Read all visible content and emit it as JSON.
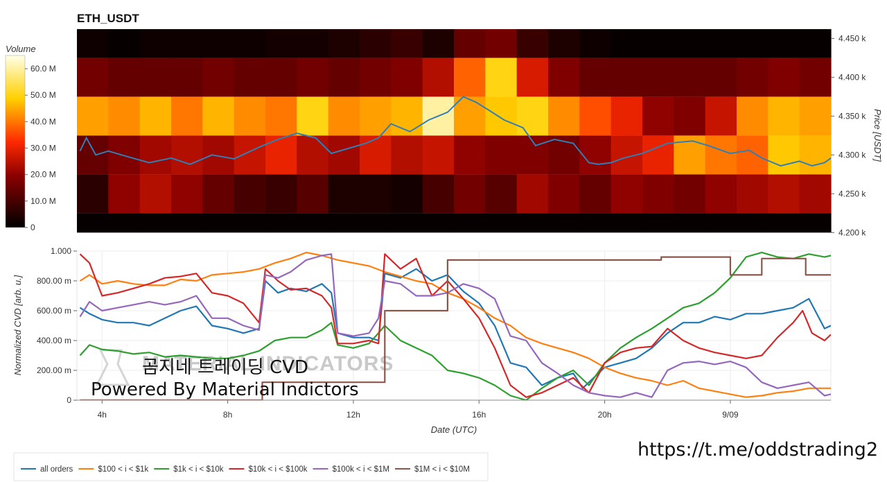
{
  "chart_data": [
    {
      "type": "heatmap",
      "title": "ETH_USDT",
      "ylabel": "Price [USDT]",
      "colorbar_label": "Volume",
      "colorbar_ticks": [
        "60.0 M",
        "50.0 M",
        "40.0 M",
        "30.0 M",
        "20.0 M",
        "10.0 M",
        "0"
      ],
      "colorbar_max": 65,
      "price_ticks": [
        "4.450 k",
        "4.400 k",
        "4.350 k",
        "4.300 k",
        "4.250 k",
        "4.200 k"
      ],
      "ylim": [
        4195,
        4462
      ],
      "bands": [
        {
          "low": 4200,
          "high": 4225,
          "vol": [
            1,
            1,
            1,
            1,
            1,
            1,
            1,
            1,
            1,
            1,
            1,
            1
          ]
        },
        {
          "low": 4225,
          "high": 4275,
          "vol": [
            6,
            20,
            24,
            20,
            14,
            10,
            8,
            12,
            4,
            4,
            3,
            10,
            16,
            12,
            22,
            18,
            14,
            20,
            18,
            16,
            20,
            22,
            24,
            22
          ]
        },
        {
          "low": 4275,
          "high": 4325,
          "vol": [
            14,
            18,
            22,
            24,
            22,
            26,
            30,
            24,
            22,
            28,
            24,
            26,
            20,
            18,
            18,
            16,
            20,
            26,
            30,
            44,
            40,
            38,
            48,
            46
          ]
        },
        {
          "low": 4325,
          "high": 4375,
          "vol": [
            44,
            42,
            46,
            40,
            46,
            42,
            40,
            50,
            42,
            44,
            46,
            60,
            44,
            48,
            50,
            42,
            36,
            30,
            20,
            18,
            26,
            42,
            46,
            44
          ]
        },
        {
          "low": 4375,
          "high": 4425,
          "vol": [
            16,
            14,
            14,
            14,
            16,
            14,
            14,
            16,
            14,
            16,
            18,
            24,
            38,
            50,
            28,
            18,
            14,
            14,
            14,
            14,
            14,
            16,
            18,
            16
          ]
        },
        {
          "low": 4425,
          "high": 4462,
          "vol": [
            2,
            1,
            2,
            2,
            2,
            2,
            3,
            3,
            4,
            6,
            8,
            4,
            14,
            16,
            8,
            4,
            2,
            1,
            1,
            1,
            1,
            1,
            1,
            1
          ]
        }
      ],
      "price_series": {
        "name": "price",
        "x": [
          3.3,
          3.5,
          3.8,
          4.2,
          4.8,
          5.5,
          6.2,
          6.8,
          7.5,
          8.2,
          9.0,
          9.6,
          10.2,
          10.8,
          11.3,
          11.8,
          12.4,
          12.8,
          13.2,
          13.8,
          14.4,
          15.0,
          15.5,
          15.9,
          16.3,
          16.8,
          17.4,
          17.8,
          18.4,
          19.0,
          19.5,
          19.8,
          20.2,
          20.6,
          21.2,
          22.0,
          22.8,
          23.3,
          24.0,
          24.6,
          25.0,
          25.6,
          26.2,
          26.6,
          27.0,
          27.2
        ],
        "y": [
          4305,
          4322,
          4300,
          4305,
          4298,
          4290,
          4296,
          4288,
          4300,
          4295,
          4310,
          4320,
          4328,
          4322,
          4302,
          4308,
          4315,
          4322,
          4340,
          4330,
          4345,
          4355,
          4375,
          4368,
          4358,
          4345,
          4335,
          4312,
          4320,
          4315,
          4290,
          4288,
          4290,
          4296,
          4302,
          4315,
          4318,
          4312,
          4302,
          4306,
          4296,
          4286,
          4292,
          4286,
          4290,
          4296
        ]
      }
    },
    {
      "type": "line",
      "xlabel": "Date (UTC)",
      "ylabel": "Normalized CVD [arb. u.]",
      "ylim": [
        0,
        1
      ],
      "y_ticks": [
        "1.000",
        "800.00 m",
        "600.00 m",
        "400.00 m",
        "200.00 m",
        "0"
      ],
      "x_ticks": [
        "4h",
        "8h",
        "12h",
        "16h",
        "20h",
        "9/09"
      ],
      "x_range": [
        3.2,
        27.2
      ],
      "x_tick_positions": [
        4,
        8,
        12,
        16,
        20,
        24
      ],
      "series": [
        {
          "name": "all orders",
          "color": "#1f77b4",
          "x": [
            3.3,
            3.6,
            4.0,
            4.5,
            5.0,
            5.5,
            6.0,
            6.5,
            7.0,
            7.5,
            8.0,
            8.5,
            9.0,
            9.2,
            9.6,
            10.0,
            10.5,
            11.0,
            11.3,
            11.5,
            12.0,
            12.5,
            12.8,
            13.0,
            13.5,
            14.0,
            14.5,
            15.0,
            15.5,
            16.0,
            16.5,
            17.0,
            17.5,
            18.0,
            18.5,
            19.0,
            19.3,
            19.5,
            20.0,
            20.5,
            21.0,
            21.5,
            22.0,
            22.5,
            23.0,
            23.5,
            24.0,
            24.5,
            25.0,
            25.5,
            26.0,
            26.5,
            27.0,
            27.2
          ],
          "y": [
            0.62,
            0.58,
            0.54,
            0.52,
            0.52,
            0.5,
            0.55,
            0.6,
            0.63,
            0.5,
            0.48,
            0.45,
            0.48,
            0.8,
            0.72,
            0.75,
            0.73,
            0.78,
            0.72,
            0.45,
            0.42,
            0.42,
            0.4,
            0.85,
            0.82,
            0.88,
            0.8,
            0.84,
            0.73,
            0.65,
            0.5,
            0.25,
            0.22,
            0.1,
            0.15,
            0.18,
            0.08,
            0.12,
            0.22,
            0.25,
            0.28,
            0.35,
            0.45,
            0.52,
            0.52,
            0.56,
            0.54,
            0.58,
            0.58,
            0.6,
            0.62,
            0.68,
            0.48,
            0.5
          ]
        },
        {
          "name": "$100 < i < $1k",
          "color": "#ff7f0e",
          "x": [
            3.3,
            3.6,
            4.0,
            4.5,
            5.0,
            5.5,
            6.0,
            6.5,
            7.0,
            7.5,
            8.0,
            8.5,
            9.0,
            9.5,
            10.0,
            10.5,
            11.0,
            11.5,
            12.0,
            12.5,
            13.0,
            13.5,
            14.0,
            14.5,
            15.0,
            15.5,
            16.0,
            16.5,
            17.0,
            17.5,
            18.0,
            18.5,
            19.0,
            19.5,
            20.0,
            20.5,
            21.0,
            21.5,
            22.0,
            22.5,
            23.0,
            23.5,
            24.0,
            24.5,
            25.0,
            25.5,
            26.0,
            26.5,
            27.0,
            27.2
          ],
          "y": [
            0.8,
            0.84,
            0.78,
            0.8,
            0.78,
            0.77,
            0.77,
            0.81,
            0.8,
            0.84,
            0.85,
            0.86,
            0.88,
            0.92,
            0.95,
            0.99,
            0.97,
            0.94,
            0.92,
            0.9,
            0.86,
            0.83,
            0.8,
            0.78,
            0.72,
            0.68,
            0.62,
            0.55,
            0.5,
            0.42,
            0.38,
            0.35,
            0.32,
            0.28,
            0.22,
            0.18,
            0.15,
            0.13,
            0.1,
            0.13,
            0.08,
            0.06,
            0.04,
            0.02,
            0.03,
            0.05,
            0.06,
            0.08,
            0.08,
            0.08
          ]
        },
        {
          "name": "$1k < i < $10k",
          "color": "#2ca02c",
          "x": [
            3.3,
            3.6,
            4.0,
            4.5,
            5.0,
            5.5,
            6.0,
            6.5,
            7.0,
            7.5,
            8.0,
            8.5,
            9.0,
            9.5,
            10.0,
            10.5,
            11.0,
            11.3,
            11.5,
            12.0,
            12.5,
            12.8,
            13.0,
            13.5,
            14.0,
            14.5,
            15.0,
            15.5,
            16.0,
            16.5,
            17.0,
            17.5,
            18.0,
            18.5,
            19.0,
            19.5,
            20.0,
            20.5,
            21.0,
            21.5,
            22.0,
            22.5,
            23.0,
            23.5,
            24.0,
            24.5,
            25.0,
            25.5,
            26.0,
            26.5,
            27.0,
            27.2
          ],
          "y": [
            0.3,
            0.37,
            0.34,
            0.33,
            0.31,
            0.32,
            0.29,
            0.3,
            0.29,
            0.28,
            0.28,
            0.3,
            0.33,
            0.4,
            0.42,
            0.42,
            0.47,
            0.52,
            0.37,
            0.35,
            0.38,
            0.45,
            0.5,
            0.4,
            0.35,
            0.3,
            0.2,
            0.18,
            0.15,
            0.1,
            0.03,
            0.0,
            0.08,
            0.15,
            0.2,
            0.1,
            0.25,
            0.35,
            0.42,
            0.48,
            0.55,
            0.62,
            0.65,
            0.72,
            0.82,
            0.96,
            0.99,
            0.96,
            0.95,
            0.98,
            0.96,
            0.97
          ]
        },
        {
          "name": "$10k < i < $100k",
          "color": "#d62728",
          "x": [
            3.3,
            3.6,
            4.0,
            4.5,
            5.0,
            5.5,
            6.0,
            6.5,
            7.0,
            7.5,
            8.0,
            8.5,
            9.0,
            9.2,
            9.6,
            10.0,
            10.5,
            11.0,
            11.3,
            11.5,
            12.0,
            12.5,
            12.8,
            13.0,
            13.5,
            14.0,
            14.5,
            15.0,
            15.5,
            16.0,
            16.5,
            17.0,
            17.5,
            18.0,
            18.5,
            19.0,
            19.5,
            20.0,
            20.5,
            21.0,
            21.5,
            22.0,
            22.5,
            23.0,
            23.5,
            24.0,
            24.5,
            25.0,
            25.5,
            26.0,
            26.3,
            26.6,
            27.0,
            27.2
          ],
          "y": [
            0.98,
            0.92,
            0.7,
            0.72,
            0.75,
            0.78,
            0.82,
            0.83,
            0.85,
            0.72,
            0.7,
            0.65,
            0.52,
            0.88,
            0.8,
            0.74,
            0.75,
            0.7,
            0.62,
            0.38,
            0.38,
            0.4,
            0.38,
            0.98,
            0.88,
            0.95,
            0.7,
            0.8,
            0.68,
            0.55,
            0.35,
            0.1,
            0.02,
            0.05,
            0.1,
            0.15,
            0.05,
            0.25,
            0.32,
            0.35,
            0.36,
            0.48,
            0.4,
            0.35,
            0.32,
            0.3,
            0.28,
            0.3,
            0.42,
            0.52,
            0.6,
            0.45,
            0.4,
            0.44
          ]
        },
        {
          "name": "$100k < i < $1M",
          "color": "#9467bd",
          "x": [
            3.3,
            3.6,
            4.0,
            4.5,
            5.0,
            5.5,
            6.0,
            6.5,
            7.0,
            7.5,
            8.0,
            8.5,
            9.0,
            9.2,
            9.6,
            10.0,
            10.5,
            11.0,
            11.3,
            11.5,
            12.0,
            12.5,
            12.8,
            13.0,
            13.5,
            14.0,
            14.5,
            15.0,
            15.5,
            16.0,
            16.5,
            17.0,
            17.5,
            18.0,
            18.5,
            19.0,
            19.5,
            20.0,
            20.5,
            21.0,
            21.5,
            22.0,
            22.5,
            23.0,
            23.5,
            24.0,
            24.5,
            25.0,
            25.5,
            26.0,
            26.5,
            27.0,
            27.2
          ],
          "y": [
            0.56,
            0.66,
            0.6,
            0.62,
            0.64,
            0.66,
            0.64,
            0.66,
            0.7,
            0.55,
            0.55,
            0.5,
            0.47,
            0.84,
            0.82,
            0.86,
            0.94,
            0.97,
            0.98,
            0.45,
            0.43,
            0.45,
            0.55,
            0.8,
            0.78,
            0.7,
            0.7,
            0.72,
            0.78,
            0.75,
            0.68,
            0.43,
            0.4,
            0.25,
            0.18,
            0.1,
            0.05,
            0.03,
            0.02,
            0.05,
            0.02,
            0.2,
            0.25,
            0.26,
            0.24,
            0.26,
            0.22,
            0.12,
            0.08,
            0.1,
            0.12,
            0.03,
            0.04
          ]
        },
        {
          "name": "$1M < i < $10M",
          "color": "#8c564b",
          "x": [
            3.3,
            9.1,
            9.1,
            13.0,
            13.0,
            15.0,
            15.0,
            21.8,
            21.8,
            24.0,
            24.0,
            25.0,
            25.0,
            26.4,
            26.4,
            27.2
          ],
          "y": [
            0.0,
            0.0,
            0.12,
            0.12,
            0.6,
            0.6,
            0.94,
            0.94,
            0.96,
            0.96,
            0.84,
            0.84,
            0.95,
            0.95,
            0.84,
            0.84
          ]
        }
      ]
    }
  ],
  "watermark": {
    "line1": "곰지네 트레이딩 CVD",
    "line2": "Powered By Material Indictors",
    "ghost": "MATERIAL INDICATORS"
  },
  "url": "https://t.me/oddstrading2"
}
